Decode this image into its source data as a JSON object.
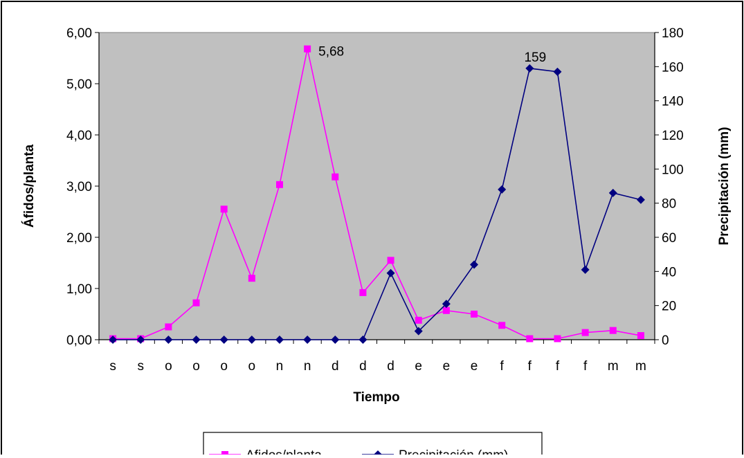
{
  "chart_data": {
    "type": "line",
    "categories": [
      "s",
      "s",
      "o",
      "o",
      "o",
      "o",
      "n",
      "n",
      "d",
      "d",
      "d",
      "e",
      "e",
      "e",
      "f",
      "f",
      "f",
      "f",
      "m",
      "m"
    ],
    "xlabel": "Tiempo",
    "ylabel_left": "Áfidos/planta",
    "ylabel_right": "Precipitación (mm)",
    "ylim_left": [
      0,
      6
    ],
    "ylim_right": [
      0,
      180
    ],
    "yticks_left": [
      "0,00",
      "1,00",
      "2,00",
      "3,00",
      "4,00",
      "5,00",
      "6,00"
    ],
    "yticks_right": [
      "0",
      "20",
      "40",
      "60",
      "80",
      "100",
      "120",
      "140",
      "160",
      "180"
    ],
    "grid": false,
    "legend_position": "bottom",
    "series": [
      {
        "name": "Afidos/planta",
        "axis": "left",
        "color": "#ff00ff",
        "marker": "square",
        "values": [
          0.02,
          0.02,
          0.25,
          0.72,
          2.55,
          1.2,
          3.03,
          5.68,
          3.18,
          0.92,
          1.55,
          0.38,
          0.57,
          0.5,
          0.28,
          0.02,
          0.02,
          0.14,
          0.18,
          0.08
        ]
      },
      {
        "name": "Precipitación (mm)",
        "axis": "right",
        "color": "#000080",
        "marker": "diamond",
        "values": [
          0,
          0,
          0,
          0,
          0,
          0,
          0,
          0,
          0,
          0,
          39,
          5,
          21,
          44,
          88,
          159,
          157,
          41,
          86,
          82
        ]
      }
    ],
    "annotations": [
      {
        "text": "5,68",
        "series": 0,
        "index": 7
      },
      {
        "text": "159",
        "series": 1,
        "index": 15
      }
    ]
  }
}
